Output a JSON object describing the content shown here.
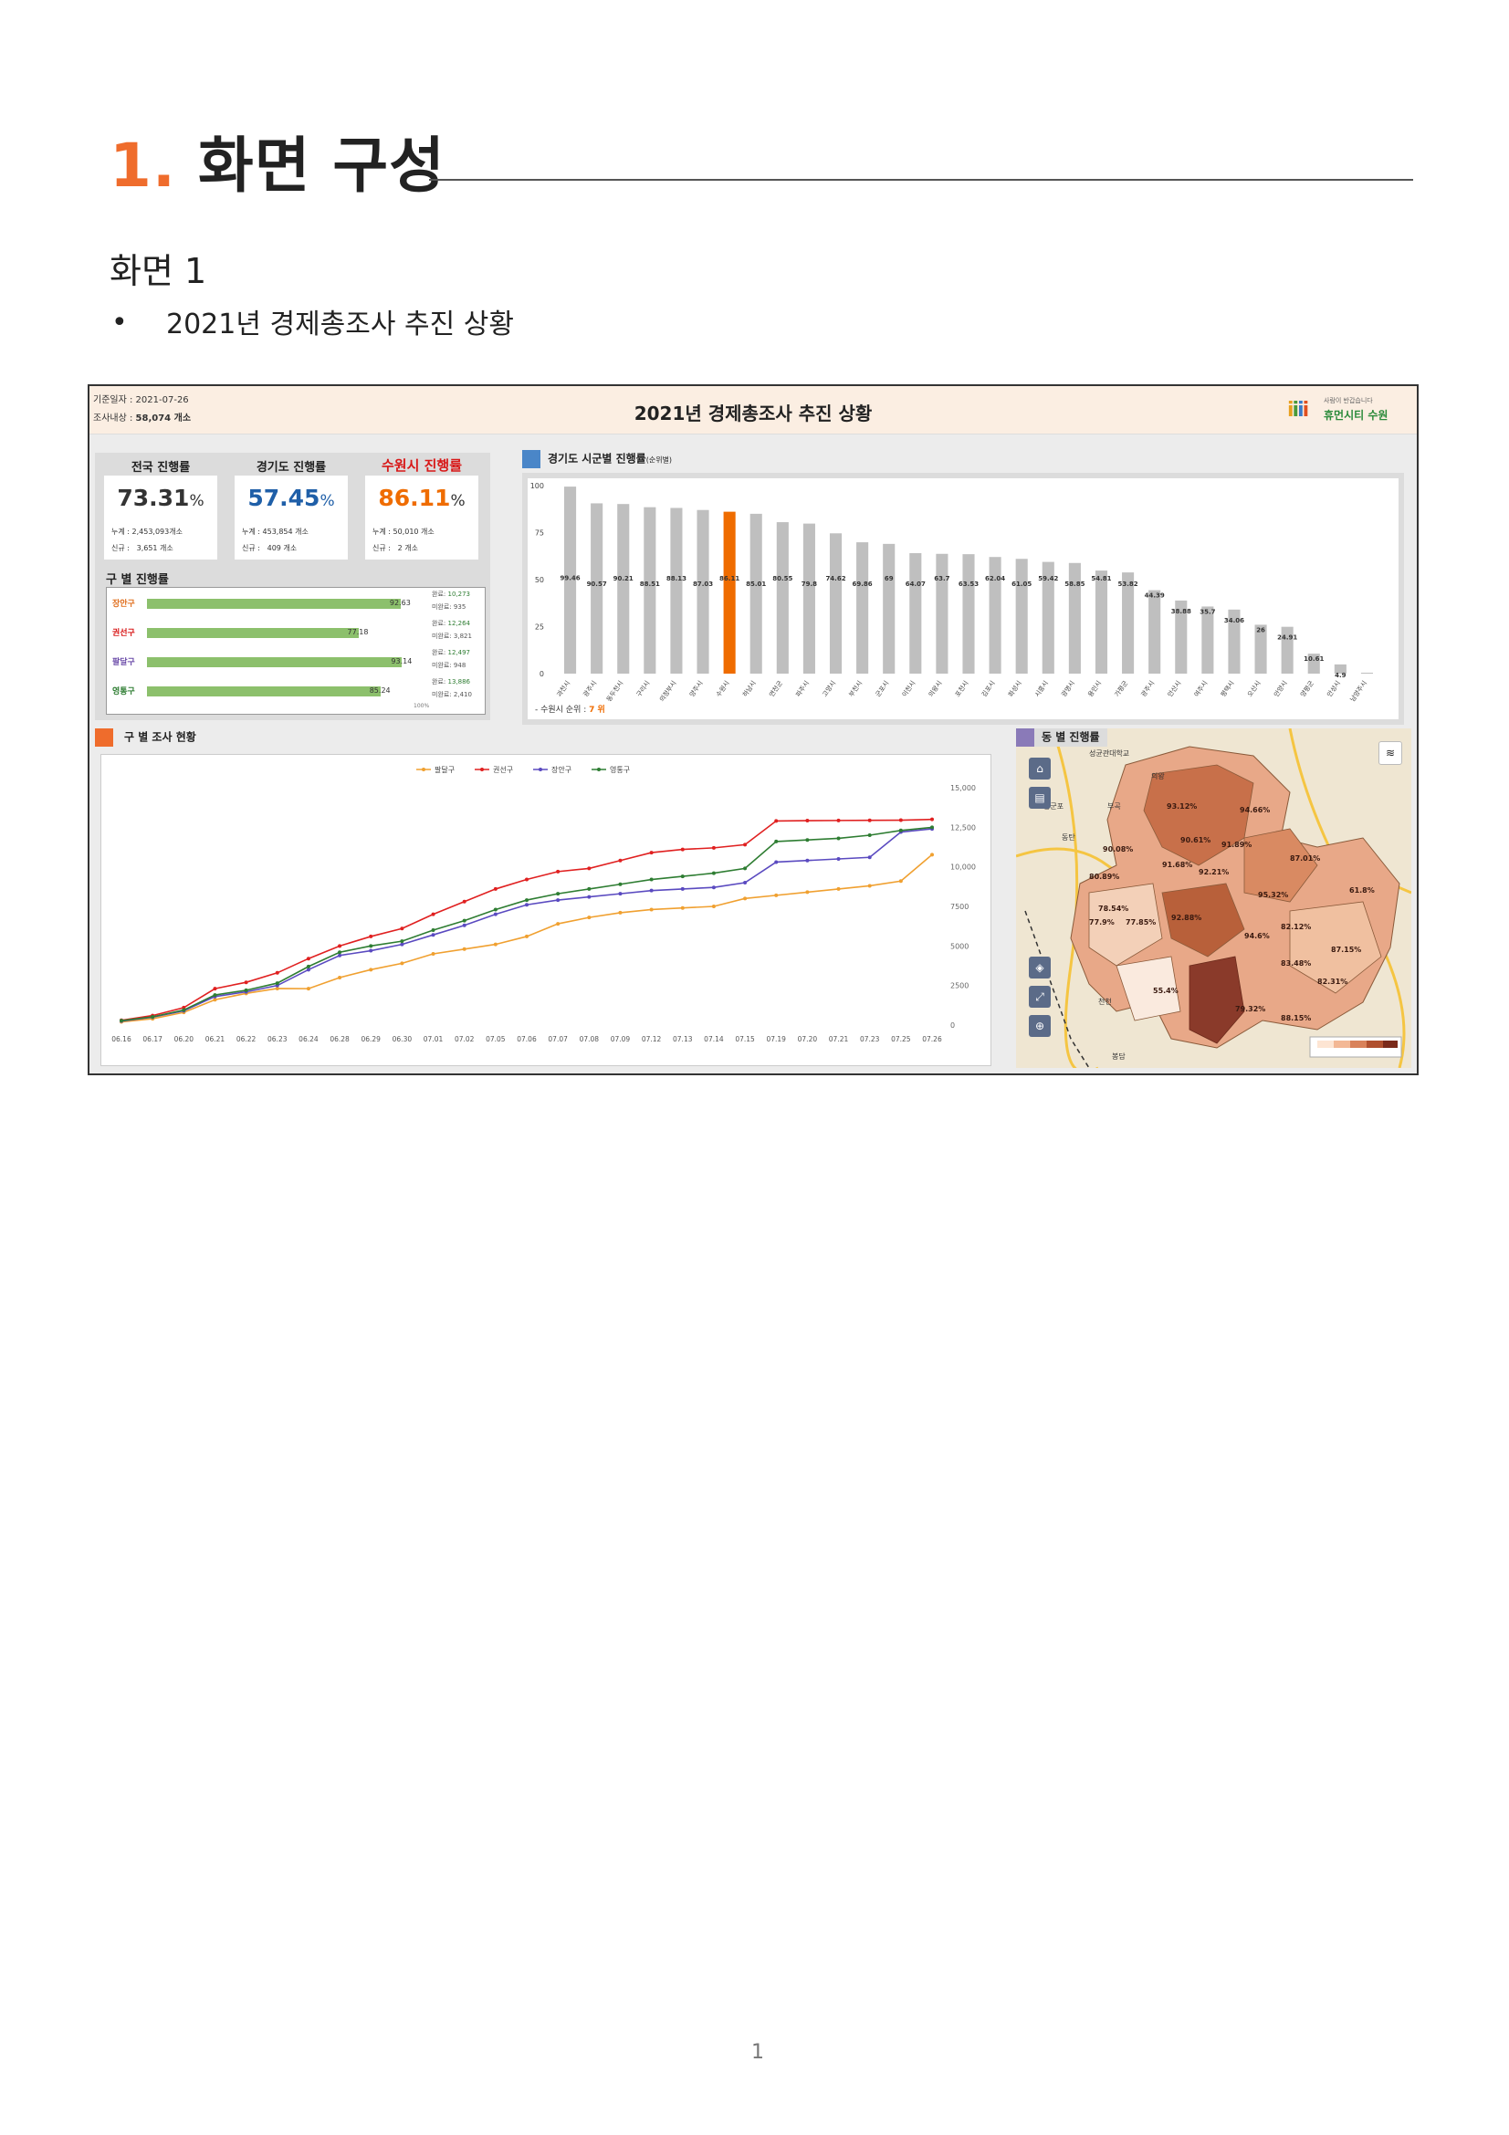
{
  "doc": {
    "title_num": "1.",
    "title_text": "화면 구성",
    "section": "화면 1",
    "bullet": "2021년 경제총조사 추진 상황",
    "page": "1"
  },
  "dashboard": {
    "ref_date_label": "기준일자 :",
    "ref_date": "2021-07-26",
    "target_label": "조사내상 :",
    "target": "58,074 개소",
    "title": "2021년 경제총조사 추진 상황",
    "logo_sub": "사람이 반갑습니다",
    "logo_main": "휴먼시티 수원"
  },
  "kpis": [
    {
      "label": "전국 진행률",
      "value": "73.31",
      "unit": "%",
      "cum_label": "누계 :",
      "cum": "2,453,093개소",
      "new_label": "신규 :",
      "new": "3,651 개소",
      "color": "#333333",
      "label_color": "#222222"
    },
    {
      "label": "경기도 진행률",
      "value": "57.45",
      "unit": "%",
      "cum_label": "누계 :",
      "cum": "453,854 개소",
      "new_label": "신규 :",
      "new": "409 개소",
      "color": "#1f5fa8",
      "label_color": "#222222"
    },
    {
      "label": "수원시 진행률",
      "value": "86.11",
      "unit": "%",
      "cum_label": "누계 :",
      "cum": "50,010 개소",
      "new_label": "신규 :",
      "new": "2 개소",
      "color": "#ef6c00",
      "label_color": "#d81818"
    }
  ],
  "gu_progress": {
    "title": "구 별 진행률",
    "scale_label": "100%",
    "rows": [
      {
        "name": "장안구",
        "value": 92.63,
        "done_label": "완료:",
        "done": "10,273",
        "todo_label": "미완료:",
        "todo": "935",
        "color": "#e07020"
      },
      {
        "name": "권선구",
        "value": 77.18,
        "done_label": "완료:",
        "done": "12,264",
        "todo_label": "미완료:",
        "todo": "3,821",
        "color": "#d81818"
      },
      {
        "name": "팔달구",
        "value": 93.14,
        "done_label": "완료:",
        "done": "12,497",
        "todo_label": "미완료:",
        "todo": "948",
        "color": "#6a4aa8"
      },
      {
        "name": "영통구",
        "value": 85.24,
        "done_label": "완료:",
        "done": "13,886",
        "todo_label": "미완료:",
        "todo": "2,410",
        "color": "#2e7d32"
      }
    ]
  },
  "city_rank": {
    "title": "경기도 시군별 진행률",
    "title_sub": "(순위별)",
    "rank_label": "- 수원시 순위 :",
    "rank": "7 위"
  },
  "gu_chart_title": "구 별 조사 현황",
  "map": {
    "title": "동 별 진행률",
    "labels": [
      {
        "t": "93.12%"
      },
      {
        "t": "94.66%"
      },
      {
        "t": "90.61%"
      },
      {
        "t": "91.89%"
      },
      {
        "t": "90.08%"
      },
      {
        "t": "87.01%"
      },
      {
        "t": "91.68%"
      },
      {
        "t": "92.21%"
      },
      {
        "t": "80.89%"
      },
      {
        "t": "95.32%"
      },
      {
        "t": "78.54%"
      },
      {
        "t": "77.85%"
      },
      {
        "t": "92.88%"
      },
      {
        "t": "94.6%"
      },
      {
        "t": "82.12%"
      },
      {
        "t": "83.48%"
      },
      {
        "t": "87.15%"
      },
      {
        "t": "55.4%"
      },
      {
        "t": "82.31%"
      },
      {
        "t": "88.15%"
      },
      {
        "t": "79.32%"
      },
      {
        "t": "77.9%"
      },
      {
        "t": "61.8%"
      }
    ],
    "places": [
      {
        "t": "의왕"
      },
      {
        "t": "부곡"
      },
      {
        "t": "동탄"
      },
      {
        "t": "남군포"
      },
      {
        "t": "봉담"
      },
      {
        "t": "천천"
      },
      {
        "t": "성균관대학교"
      }
    ]
  },
  "chart_data": [
    {
      "type": "bar",
      "title": "경기도 시군별 진행률",
      "ylim": [
        0,
        100
      ],
      "yticks": [
        0,
        25,
        50,
        75,
        100
      ],
      "categories": [
        "과천시",
        "광주시",
        "동두천시",
        "구리시",
        "의정부시",
        "양주시",
        "수원시",
        "하남시",
        "연천군",
        "파주시",
        "고양시",
        "부천시",
        "군포시",
        "이천시",
        "의왕시",
        "포천시",
        "김포시",
        "화성시",
        "시흥시",
        "광명시",
        "용인시",
        "가평군",
        "광주시",
        "안산시",
        "여주시",
        "평택시",
        "오산시",
        "안양시",
        "양평군",
        "안성시",
        "남양주시"
      ],
      "values": [
        99.46,
        90.57,
        90.21,
        88.51,
        88.13,
        87.03,
        86.11,
        85.01,
        80.55,
        79.8,
        74.62,
        69.86,
        69,
        64.07,
        63.7,
        63.53,
        62.04,
        61.05,
        59.42,
        58.85,
        54.81,
        53.82,
        44.39,
        38.88,
        35.7,
        34.06,
        26,
        24.91,
        10.61,
        4.9,
        0.5
      ],
      "value_labels": [
        "99.46",
        "90.57",
        "90.21",
        "88.51",
        "88.13",
        "87.03",
        "86.11",
        "85.01",
        "80.55",
        "79.8",
        "74.62",
        "69.86",
        "69",
        "64.07",
        "63.7",
        "63.53",
        "62.04",
        "61.05",
        "59.42",
        "58.85",
        "54.81",
        "53.82",
        "44.39",
        "38.88",
        "35.7",
        "34.06",
        "26",
        "24.91",
        "10.61",
        "4.9",
        ""
      ],
      "highlight": "수원시",
      "colors": {
        "bar": "#bfbfbf",
        "highlight": "#ef6c00"
      },
      "grid": false
    },
    {
      "type": "line",
      "title": "구 별 조사 현황",
      "x": [
        "06.16",
        "06.17",
        "06.20",
        "06.21",
        "06.22",
        "06.23",
        "06.24",
        "06.28",
        "06.29",
        "06.30",
        "07.01",
        "07.02",
        "07.05",
        "07.06",
        "07.07",
        "07.08",
        "07.09",
        "07.12",
        "07.13",
        "07.14",
        "07.15",
        "07.19",
        "07.20",
        "07.21",
        "07.23",
        "07.25",
        "07.26"
      ],
      "ylim": [
        0,
        15000
      ],
      "yticks": [
        0,
        2500,
        5000,
        7500,
        10000,
        12500,
        15000
      ],
      "ytick_labels": [
        "0",
        "2500",
        "5000",
        "7500",
        "10,000",
        "12,500",
        "15,000"
      ],
      "legend": "top",
      "series": [
        {
          "name": "팔달구",
          "color": "#f0a030",
          "marker": "dot",
          "values": [
            200,
            400,
            800,
            1600,
            2000,
            2311,
            2300,
            3000,
            3500,
            3900,
            4500,
            4800,
            5100,
            5600,
            6400,
            6800,
            7100,
            7300,
            7400,
            7500,
            8000,
            8200,
            8400,
            8600,
            8800,
            9100,
            10770
          ]
        },
        {
          "name": "권선구",
          "color": "#e02020",
          "marker": "diamond",
          "values": [
            300,
            600,
            1100,
            2300,
            2700,
            3300,
            4200,
            5000,
            5600,
            6100,
            7000,
            7800,
            8600,
            9200,
            9700,
            9900,
            10400,
            10900,
            11100,
            11200,
            11400,
            12900,
            12920,
            12930,
            12940,
            12950,
            13000
          ]
        },
        {
          "name": "장안구",
          "color": "#5a4ac0",
          "marker": "square",
          "values": [
            250,
            500,
            900,
            1800,
            2100,
            2500,
            3500,
            4400,
            4700,
            5100,
            5700,
            6300,
            7000,
            7600,
            7900,
            8100,
            8300,
            8500,
            8600,
            8700,
            9000,
            10300,
            10400,
            10500,
            10600,
            12200,
            12400
          ]
        },
        {
          "name": "영통구",
          "color": "#2e7d32",
          "marker": "triangle",
          "values": [
            280,
            520,
            950,
            1900,
            2200,
            2650,
            3700,
            4600,
            5000,
            5300,
            6000,
            6600,
            7300,
            7900,
            8300,
            8600,
            8900,
            9200,
            9400,
            9600,
            9900,
            11600,
            11700,
            11800,
            12000,
            12300,
            12496
          ]
        }
      ]
    }
  ]
}
